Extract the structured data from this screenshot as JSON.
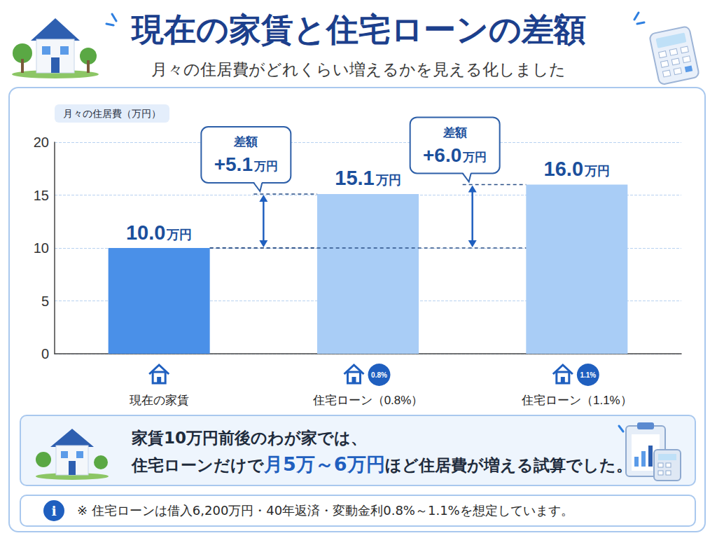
{
  "header": {
    "title": "現在の家賃と住宅ローンの差額",
    "subtitle": "月々の住居費がどれくらい増えるかを見える化しました"
  },
  "chart_data": {
    "type": "bar",
    "y_label": "月々の住居費（万円）",
    "categories": [
      "現在の家賃",
      "住宅ローン（0.8%）",
      "住宅ローン（1.1%）"
    ],
    "badges": [
      null,
      "0.8%",
      "1.1%"
    ],
    "values": [
      10.0,
      15.1,
      16.0
    ],
    "value_labels": [
      "10.0万円",
      "15.1万円",
      "16.0万円"
    ],
    "colors": [
      "#4a90e8",
      "#a9cdf6",
      "#a9cdf6"
    ],
    "ylim": [
      0,
      20
    ],
    "yticks": [
      0,
      5,
      10,
      15,
      20
    ],
    "grid": true,
    "data_labels": true,
    "annotations": [
      {
        "title": "差額",
        "label": "+5.1万円",
        "y_from": 10.0,
        "y_to": 15.1
      },
      {
        "title": "差額",
        "label": "+6.0万円",
        "y_from": 10.0,
        "y_to": 16.0
      }
    ]
  },
  "summary": {
    "lines": [
      [
        {
          "text": "家賃10万円前後のわが家では、"
        }
      ],
      [
        {
          "text": "住宅ローンだけで"
        },
        {
          "text": "月5万～6万円",
          "color": "#1f5fbf"
        },
        {
          "text": "ほど住居費が増える試算でした。"
        }
      ]
    ]
  },
  "note": {
    "icon": "i",
    "text": "※ 住宅ローンは借入6,200万円・40年返済・変動金利0.8%～1.1%を想定しています。"
  }
}
